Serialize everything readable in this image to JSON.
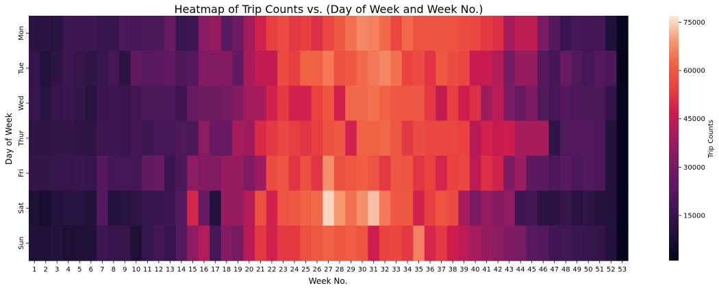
{
  "chart_data": {
    "type": "heatmap",
    "title": "Heatmap of Trip Counts vs. (Day of Week and Week No.)",
    "xlabel": "Week No.",
    "ylabel": "Day of Week",
    "colorbar_label": "Trip Counts",
    "colormap": "rocket",
    "vmin": 1000,
    "vmax": 77000,
    "colorbar_ticks": [
      15000,
      30000,
      45000,
      60000,
      75000
    ],
    "colorbar_tick_labels": [
      "15000",
      "30000",
      "45000",
      "60000",
      "75000"
    ],
    "x_categories": [
      "1",
      "2",
      "3",
      "4",
      "5",
      "6",
      "7",
      "8",
      "9",
      "10",
      "11",
      "12",
      "13",
      "14",
      "15",
      "16",
      "17",
      "18",
      "19",
      "20",
      "21",
      "22",
      "23",
      "24",
      "25",
      "26",
      "27",
      "28",
      "29",
      "30",
      "31",
      "32",
      "33",
      "34",
      "35",
      "36",
      "37",
      "38",
      "39",
      "40",
      "41",
      "42",
      "43",
      "44",
      "45",
      "46",
      "47",
      "48",
      "49",
      "50",
      "51",
      "52",
      "53"
    ],
    "y_categories": [
      "Mon",
      "Tue",
      "Wed",
      "Thur",
      "Fri",
      "Sat",
      "Sun"
    ],
    "values": [
      [
        12000,
        12000,
        11000,
        17000,
        17000,
        17000,
        15000,
        15000,
        20000,
        19000,
        20000,
        20000,
        27000,
        15000,
        17000,
        34000,
        37000,
        23000,
        28000,
        39000,
        48000,
        54000,
        57000,
        53000,
        54000,
        51000,
        56000,
        60000,
        64000,
        67000,
        66000,
        63000,
        56000,
        63000,
        59000,
        59000,
        59000,
        59000,
        57000,
        56000,
        53000,
        51000,
        40000,
        44000,
        44000,
        31000,
        22000,
        16000,
        19000,
        18000,
        18000,
        9000,
        2000
      ],
      [
        15000,
        10000,
        13000,
        17000,
        15000,
        13000,
        15000,
        19000,
        12000,
        25000,
        23000,
        24000,
        25000,
        20000,
        22000,
        33000,
        33000,
        33000,
        25000,
        40000,
        45000,
        45000,
        57000,
        54000,
        62000,
        62000,
        65000,
        58000,
        60000,
        63000,
        65000,
        67000,
        64000,
        55000,
        57000,
        52000,
        60000,
        57000,
        56000,
        46000,
        46000,
        42000,
        30000,
        37000,
        37000,
        22000,
        18000,
        27000,
        21000,
        19000,
        22000,
        20000,
        1500
      ],
      [
        15000,
        11000,
        15000,
        16000,
        14000,
        11000,
        16000,
        17000,
        16000,
        18000,
        20000,
        20000,
        20000,
        17000,
        27000,
        28000,
        28000,
        30000,
        33000,
        39000,
        40000,
        48000,
        53000,
        48000,
        48000,
        55000,
        59000,
        48000,
        63000,
        63000,
        64000,
        62000,
        60000,
        60000,
        60000,
        53000,
        45000,
        54000,
        47000,
        51000,
        38000,
        44000,
        31000,
        26000,
        32000,
        21000,
        19000,
        22000,
        20000,
        20000,
        20000,
        14000,
        2000
      ],
      [
        13000,
        13000,
        14000,
        14000,
        13000,
        13000,
        17000,
        17000,
        16000,
        18000,
        17000,
        19000,
        19000,
        21000,
        20000,
        35000,
        27000,
        27000,
        40000,
        38000,
        50000,
        53000,
        56000,
        54000,
        52000,
        54000,
        58000,
        60000,
        48000,
        62000,
        62000,
        63000,
        60000,
        53000,
        57000,
        56000,
        56000,
        56000,
        55000,
        43000,
        48000,
        46000,
        47000,
        40000,
        40000,
        40000,
        13000,
        21000,
        22000,
        22000,
        20000,
        10000,
        1500
      ],
      [
        14000,
        14000,
        15000,
        15000,
        16000,
        15000,
        22000,
        18000,
        19000,
        18000,
        25000,
        27000,
        16000,
        20000,
        35000,
        33000,
        33000,
        37000,
        37000,
        32000,
        38000,
        57000,
        59000,
        52000,
        58000,
        52000,
        68000,
        58000,
        60000,
        61000,
        59000,
        53000,
        60000,
        59000,
        52000,
        55000,
        49000,
        55000,
        56000,
        44000,
        51000,
        48000,
        32000,
        38000,
        24000,
        24000,
        20000,
        23000,
        20000,
        22000,
        20000,
        10000,
        1500
      ],
      [
        8000,
        7000,
        10000,
        11000,
        11000,
        9000,
        22000,
        10000,
        11000,
        13000,
        15000,
        16000,
        17000,
        22000,
        49000,
        27000,
        10000,
        37000,
        37000,
        42000,
        58000,
        48000,
        59000,
        60000,
        62000,
        63000,
        75000,
        69000,
        64000,
        68000,
        73000,
        65000,
        60000,
        60000,
        48000,
        54000,
        59000,
        57000,
        40000,
        31000,
        36000,
        33000,
        36000,
        17000,
        18000,
        12000,
        12000,
        15000,
        11000,
        13000,
        10000,
        10000,
        1500
      ],
      [
        9000,
        9000,
        10000,
        8000,
        9000,
        9000,
        17000,
        15000,
        15000,
        8000,
        15000,
        18000,
        15000,
        22000,
        35000,
        42000,
        19000,
        33000,
        30000,
        43000,
        53000,
        48000,
        53000,
        53000,
        58000,
        60000,
        62000,
        60000,
        61000,
        59000,
        47000,
        55000,
        56000,
        53000,
        66000,
        49000,
        53000,
        47000,
        44000,
        40000,
        37000,
        35000,
        32000,
        31000,
        23000,
        22000,
        17000,
        18000,
        16000,
        15000,
        14000,
        10000,
        1500
      ]
    ]
  }
}
